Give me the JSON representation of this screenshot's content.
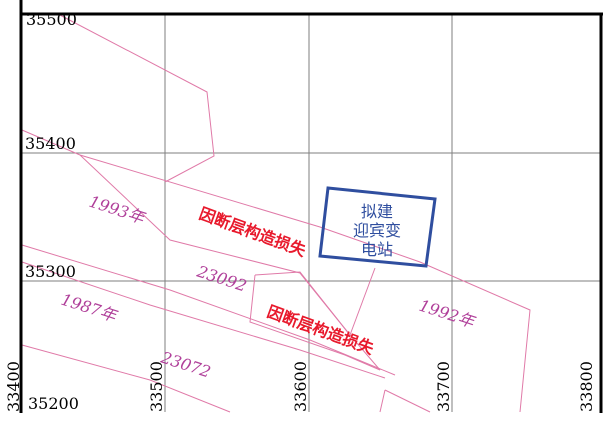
{
  "map": {
    "grid": {
      "y_labels": [
        "35500",
        "35400",
        "35300",
        "35200"
      ],
      "x_labels": [
        "33400",
        "33500",
        "33600",
        "33700",
        "33800"
      ]
    },
    "year_labels": [
      "1993年",
      "1987年",
      "1992年"
    ],
    "contour_labels": [
      "23092",
      "23072"
    ],
    "fault_loss_labels": [
      "因断层构造损失",
      "因断层构造损失"
    ],
    "substation": {
      "line1": "拟建",
      "line2": "迎宾变",
      "line3": "电站"
    },
    "colors": {
      "frame": "#000000",
      "grid": "#7f7f7f",
      "boundary": "#e07aa8",
      "year_text": "#b0409a",
      "fault_text": "#e8192c",
      "substation": "#2f4e9f"
    }
  }
}
